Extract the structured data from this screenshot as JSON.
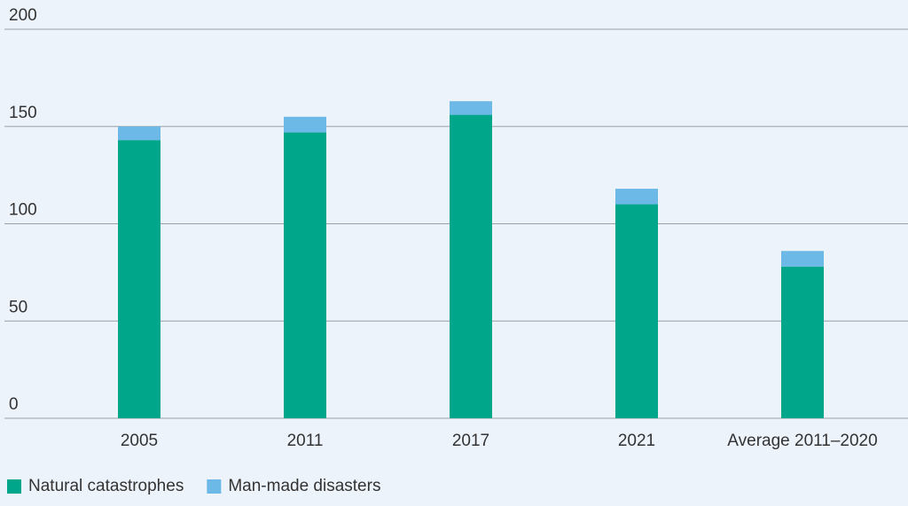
{
  "chart_data": {
    "type": "bar",
    "stacked": true,
    "categories": [
      "2005",
      "2011",
      "2017",
      "2021",
      "Average 2011–2020"
    ],
    "series": [
      {
        "name": "Natural catastrophes",
        "color": "#00a68a",
        "values": [
          143,
          147,
          156,
          110,
          78
        ]
      },
      {
        "name": "Man-made disasters",
        "color": "#6cb8e6",
        "values": [
          7,
          8,
          7,
          8,
          8
        ]
      }
    ],
    "ylim": [
      0,
      200
    ],
    "yticks": [
      0,
      50,
      100,
      150,
      200
    ],
    "grid": true
  }
}
